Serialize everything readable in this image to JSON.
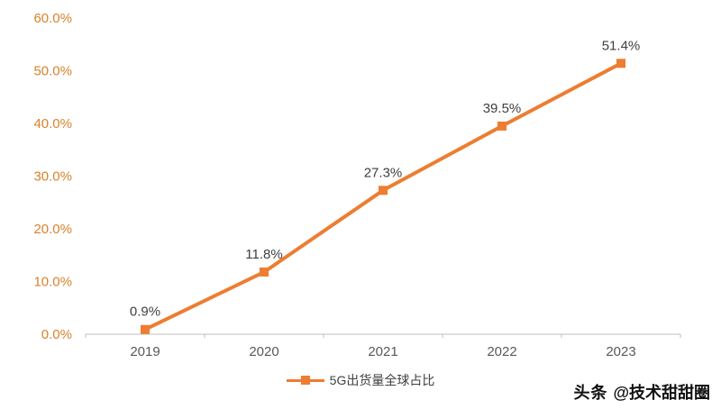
{
  "chart_data": {
    "type": "line",
    "title": "",
    "categories": [
      "2019",
      "2020",
      "2021",
      "2022",
      "2023"
    ],
    "series": [
      {
        "name": "5G出货量全球占比",
        "values": [
          0.9,
          11.8,
          27.3,
          39.5,
          51.4
        ]
      }
    ],
    "data_labels": [
      "0.9%",
      "11.8%",
      "27.3%",
      "39.5%",
      "51.4%"
    ],
    "xlabel": "",
    "ylabel": "",
    "ylim": [
      0,
      60
    ],
    "ytick_step": 10,
    "ytick_labels": [
      "0.0%",
      "10.0%",
      "20.0%",
      "30.0%",
      "40.0%",
      "50.0%",
      "60.0%"
    ],
    "grid": false,
    "legend_position": "bottom",
    "line_color": "#ED7D31",
    "marker_shape": "square",
    "ytick_label_color": "#D9822B",
    "xtick_label_color": "#595959",
    "data_label_color": "#3F3F3F",
    "axis_color": "#BFBFBF"
  },
  "watermark": {
    "brand": "头条",
    "handle": "@技术甜甜圈"
  }
}
